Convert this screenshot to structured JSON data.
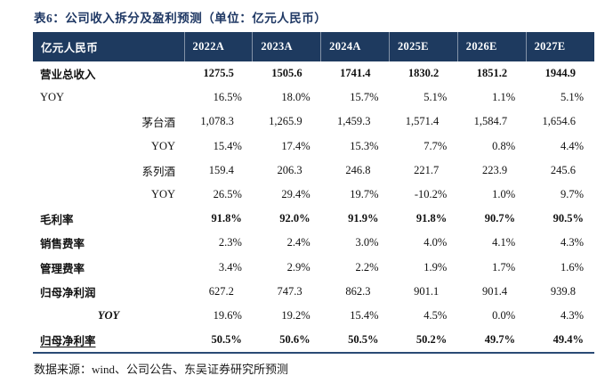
{
  "title": "表6：公司收入拆分及盈利预测（单位：亿元人民币）",
  "footer": "数据来源：wind、公司公告、东吴证券研究所预测",
  "colors": {
    "header_bg": "#1E3A5F",
    "title_text": "#1F3864",
    "body_text": "#111111",
    "table_bottom_border": "#2a4a75"
  },
  "table": {
    "header": [
      "亿元人民币",
      "2022A",
      "2023A",
      "2024A",
      "2025E",
      "2026E",
      "2027E"
    ],
    "rows": [
      {
        "label": "营业总收入",
        "label_align": "left",
        "label_bold": true,
        "label_italic": false,
        "label_underline": false,
        "values_bold": true,
        "format": "num",
        "values": [
          "1275.5",
          "1505.6",
          "1741.4",
          "1830.2",
          "1851.2",
          "1944.9"
        ]
      },
      {
        "label": "YOY",
        "label_align": "left",
        "label_bold": false,
        "label_italic": false,
        "label_underline": false,
        "values_bold": false,
        "format": "pct",
        "values": [
          "16.5%",
          "18.0%",
          "15.7%",
          "5.1%",
          "1.1%",
          "5.1%"
        ]
      },
      {
        "label": "茅台酒",
        "label_align": "right",
        "label_bold": false,
        "label_italic": false,
        "label_underline": false,
        "values_bold": false,
        "format": "num",
        "values": [
          "1,078.3",
          "1,265.9",
          "1,459.3",
          "1,571.4",
          "1,584.7",
          "1,654.6"
        ]
      },
      {
        "label": "YOY",
        "label_align": "right",
        "label_bold": false,
        "label_italic": false,
        "label_underline": false,
        "values_bold": false,
        "format": "pct",
        "values": [
          "15.4%",
          "17.4%",
          "15.3%",
          "7.7%",
          "0.8%",
          "4.4%"
        ]
      },
      {
        "label": "系列酒",
        "label_align": "right",
        "label_bold": false,
        "label_italic": false,
        "label_underline": false,
        "values_bold": false,
        "format": "num",
        "values": [
          "159.4",
          "206.3",
          "246.8",
          "221.7",
          "223.9",
          "245.6"
        ]
      },
      {
        "label": "YOY",
        "label_align": "right",
        "label_bold": false,
        "label_italic": false,
        "label_underline": false,
        "values_bold": false,
        "format": "pct",
        "values": [
          "26.5%",
          "29.4%",
          "19.7%",
          "-10.2%",
          "1.0%",
          "9.7%"
        ]
      },
      {
        "label": "毛利率",
        "label_align": "left",
        "label_bold": true,
        "label_italic": false,
        "label_underline": false,
        "values_bold": true,
        "format": "pct",
        "values": [
          "91.8%",
          "92.0%",
          "91.9%",
          "91.8%",
          "90.7%",
          "90.5%"
        ]
      },
      {
        "label": "销售费率",
        "label_align": "left",
        "label_bold": true,
        "label_italic": false,
        "label_underline": false,
        "values_bold": false,
        "format": "pct",
        "values": [
          "2.3%",
          "2.4%",
          "3.0%",
          "4.0%",
          "4.1%",
          "4.3%"
        ]
      },
      {
        "label": "管理费率",
        "label_align": "left",
        "label_bold": true,
        "label_italic": false,
        "label_underline": false,
        "values_bold": false,
        "format": "pct",
        "values": [
          "3.4%",
          "2.9%",
          "2.2%",
          "1.9%",
          "1.7%",
          "1.6%"
        ]
      },
      {
        "label": "归母净利润",
        "label_align": "left",
        "label_bold": true,
        "label_italic": false,
        "label_underline": false,
        "values_bold": false,
        "format": "num",
        "values": [
          "627.2",
          "747.3",
          "862.3",
          "901.1",
          "901.4",
          "939.8"
        ]
      },
      {
        "label": "YOY",
        "label_align": "center",
        "label_bold": true,
        "label_italic": true,
        "label_underline": false,
        "values_bold": false,
        "format": "pct",
        "values": [
          "19.6%",
          "19.2%",
          "15.4%",
          "4.5%",
          "0.0%",
          "4.3%"
        ]
      },
      {
        "label": "归母净利率",
        "label_align": "left",
        "label_bold": true,
        "label_italic": false,
        "label_underline": true,
        "values_bold": true,
        "format": "pct",
        "values": [
          "50.5%",
          "50.6%",
          "50.5%",
          "50.2%",
          "49.7%",
          "49.4%"
        ]
      }
    ]
  }
}
